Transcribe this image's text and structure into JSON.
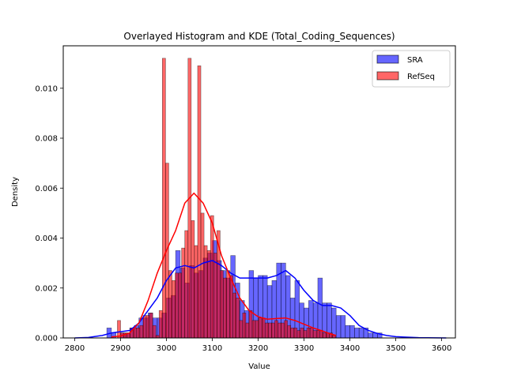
{
  "chart_data": {
    "type": "histogram",
    "title": "Overlayed Histogram and KDE (Total_Coding_Sequences)",
    "xlabel": "Value",
    "ylabel": "Density",
    "xlim": [
      2775,
      3630
    ],
    "ylim": [
      0,
      0.0117
    ],
    "xticks": [
      2800,
      2900,
      3000,
      3100,
      3200,
      3300,
      3400,
      3500,
      3600
    ],
    "yticks": [
      0.0,
      0.002,
      0.004,
      0.006,
      0.008,
      0.01
    ],
    "ytick_labels": [
      "0.000",
      "0.002",
      "0.004",
      "0.006",
      "0.008",
      "0.010"
    ],
    "legend_position": "upper right",
    "grid": false,
    "series": [
      {
        "name": "SRA",
        "color": "#0000ff",
        "alpha": 0.6,
        "bin_width": 10,
        "bins": [
          [
            2870,
            0.0004
          ],
          [
            2880,
            0.0002
          ],
          [
            2900,
            0.0002
          ],
          [
            2910,
            0.0002
          ],
          [
            2920,
            0.0004
          ],
          [
            2930,
            0.0005
          ],
          [
            2940,
            0.0008
          ],
          [
            2950,
            0.0008
          ],
          [
            2960,
            0.001
          ],
          [
            2970,
            0.0008
          ],
          [
            2980,
            0.0008
          ],
          [
            2990,
            0.001
          ],
          [
            3000,
            0.0016
          ],
          [
            3010,
            0.0017
          ],
          [
            3020,
            0.0035
          ],
          [
            3030,
            0.0028
          ],
          [
            3040,
            0.0022
          ],
          [
            3050,
            0.0029
          ],
          [
            3060,
            0.0026
          ],
          [
            3070,
            0.0027
          ],
          [
            3080,
            0.0032
          ],
          [
            3090,
            0.0034
          ],
          [
            3100,
            0.0039
          ],
          [
            3110,
            0.0031
          ],
          [
            3120,
            0.0027
          ],
          [
            3130,
            0.0024
          ],
          [
            3140,
            0.0033
          ],
          [
            3150,
            0.0022
          ],
          [
            3160,
            0.0015
          ],
          [
            3170,
            0.0011
          ],
          [
            3180,
            0.0027
          ],
          [
            3190,
            0.0024
          ],
          [
            3200,
            0.0025
          ],
          [
            3210,
            0.0025
          ],
          [
            3220,
            0.0021
          ],
          [
            3230,
            0.0023
          ],
          [
            3240,
            0.003
          ],
          [
            3250,
            0.003
          ],
          [
            3260,
            0.0025
          ],
          [
            3270,
            0.0016
          ],
          [
            3280,
            0.0023
          ],
          [
            3290,
            0.0014
          ],
          [
            3300,
            0.0012
          ],
          [
            3310,
            0.0015
          ],
          [
            3320,
            0.0014
          ],
          [
            3330,
            0.0024
          ],
          [
            3340,
            0.0014
          ],
          [
            3350,
            0.0014
          ],
          [
            3360,
            0.0012
          ],
          [
            3370,
            0.0009
          ],
          [
            3380,
            0.0009
          ],
          [
            3390,
            0.0005
          ],
          [
            3400,
            0.0005
          ],
          [
            3410,
            0.0004
          ],
          [
            3420,
            0.0004
          ],
          [
            3430,
            0.0004
          ],
          [
            3440,
            0.0002
          ],
          [
            3450,
            0.0002
          ],
          [
            3460,
            0.0002
          ]
        ],
        "kde": [
          [
            2800,
            0.0
          ],
          [
            2830,
            2e-05
          ],
          [
            2860,
            0.0001
          ],
          [
            2880,
            0.0002
          ],
          [
            2900,
            0.00025
          ],
          [
            2920,
            0.0003
          ],
          [
            2940,
            0.0006
          ],
          [
            2960,
            0.0011
          ],
          [
            2980,
            0.0016
          ],
          [
            3000,
            0.0023
          ],
          [
            3020,
            0.0028
          ],
          [
            3040,
            0.0029
          ],
          [
            3060,
            0.0028
          ],
          [
            3080,
            0.003
          ],
          [
            3100,
            0.0031
          ],
          [
            3120,
            0.0029
          ],
          [
            3140,
            0.0026
          ],
          [
            3160,
            0.0024
          ],
          [
            3180,
            0.0024
          ],
          [
            3200,
            0.0024
          ],
          [
            3220,
            0.0024
          ],
          [
            3240,
            0.0025
          ],
          [
            3260,
            0.0027
          ],
          [
            3280,
            0.0024
          ],
          [
            3300,
            0.0019
          ],
          [
            3320,
            0.0015
          ],
          [
            3340,
            0.0013
          ],
          [
            3360,
            0.0013
          ],
          [
            3380,
            0.0012
          ],
          [
            3400,
            0.0009
          ],
          [
            3420,
            0.0005
          ],
          [
            3440,
            0.0003
          ],
          [
            3460,
            0.00018
          ],
          [
            3480,
            0.0001
          ],
          [
            3500,
            5e-05
          ],
          [
            3550,
            1e-05
          ],
          [
            3610,
            0.0
          ]
        ]
      },
      {
        "name": "RefSeq",
        "color": "#ff0000",
        "alpha": 0.6,
        "bin_width": 7,
        "bins": [
          [
            2893,
            0.0007
          ],
          [
            2900,
            0.0002
          ],
          [
            2907,
            0.0002
          ],
          [
            2914,
            0.0002
          ],
          [
            2921,
            0.0004
          ],
          [
            2928,
            0.0004
          ],
          [
            2935,
            0.0004
          ],
          [
            2942,
            0.0005
          ],
          [
            2949,
            0.0009
          ],
          [
            2956,
            0.0009
          ],
          [
            2963,
            0.001
          ],
          [
            2970,
            0.0005
          ],
          [
            2977,
            0.0001
          ],
          [
            2984,
            0.0011
          ],
          [
            2991,
            0.0112
          ],
          [
            2998,
            0.007
          ],
          [
            3005,
            0.0027
          ],
          [
            3012,
            0.0023
          ],
          [
            3019,
            0.0026
          ],
          [
            3026,
            0.0026
          ],
          [
            3033,
            0.0036
          ],
          [
            3040,
            0.0043
          ],
          [
            3047,
            0.0112
          ],
          [
            3054,
            0.0047
          ],
          [
            3061,
            0.0037
          ],
          [
            3068,
            0.0109
          ],
          [
            3075,
            0.005
          ],
          [
            3082,
            0.0037
          ],
          [
            3089,
            0.0035
          ],
          [
            3096,
            0.0049
          ],
          [
            3103,
            0.0034
          ],
          [
            3110,
            0.0043
          ],
          [
            3117,
            0.0027
          ],
          [
            3124,
            0.0024
          ],
          [
            3131,
            0.0027
          ],
          [
            3138,
            0.0025
          ],
          [
            3145,
            0.0018
          ],
          [
            3152,
            0.0016
          ],
          [
            3159,
            0.0007
          ],
          [
            3166,
            0.001
          ],
          [
            3173,
            0.0006
          ],
          [
            3180,
            0.0011
          ],
          [
            3187,
            0.0007
          ],
          [
            3194,
            0.0007
          ],
          [
            3201,
            0.0008
          ],
          [
            3208,
            0.0008
          ],
          [
            3215,
            0.0006
          ],
          [
            3222,
            0.0006
          ],
          [
            3229,
            0.0006
          ],
          [
            3236,
            0.0007
          ],
          [
            3243,
            0.0006
          ],
          [
            3250,
            0.0006
          ],
          [
            3257,
            0.0007
          ],
          [
            3264,
            0.0005
          ],
          [
            3271,
            0.0004
          ],
          [
            3278,
            0.0004
          ],
          [
            3285,
            0.0003
          ],
          [
            3292,
            0.0004
          ],
          [
            3299,
            0.0003
          ],
          [
            3306,
            0.0004
          ],
          [
            3313,
            0.0004
          ],
          [
            3320,
            0.0003
          ],
          [
            3327,
            0.0003
          ],
          [
            3334,
            0.0003
          ],
          [
            3341,
            0.0002
          ],
          [
            3348,
            0.0002
          ],
          [
            3355,
            0.0002
          ],
          [
            3362,
            0.0001
          ]
        ],
        "kde": [
          [
            2880,
            4e-05
          ],
          [
            2900,
            8e-05
          ],
          [
            2920,
            0.0002
          ],
          [
            2940,
            0.0006
          ],
          [
            2960,
            0.0015
          ],
          [
            2980,
            0.0026
          ],
          [
            3000,
            0.0035
          ],
          [
            3020,
            0.0043
          ],
          [
            3040,
            0.0054
          ],
          [
            3060,
            0.0058
          ],
          [
            3080,
            0.0054
          ],
          [
            3100,
            0.0046
          ],
          [
            3120,
            0.0033
          ],
          [
            3140,
            0.0024
          ],
          [
            3160,
            0.0016
          ],
          [
            3180,
            0.0011
          ],
          [
            3200,
            0.00085
          ],
          [
            3220,
            0.00075
          ],
          [
            3240,
            0.00078
          ],
          [
            3260,
            0.0008
          ],
          [
            3280,
            0.0007
          ],
          [
            3300,
            0.00055
          ],
          [
            3320,
            0.0004
          ],
          [
            3340,
            0.00028
          ],
          [
            3360,
            0.00015
          ],
          [
            3370,
            0.0001
          ]
        ]
      }
    ]
  }
}
